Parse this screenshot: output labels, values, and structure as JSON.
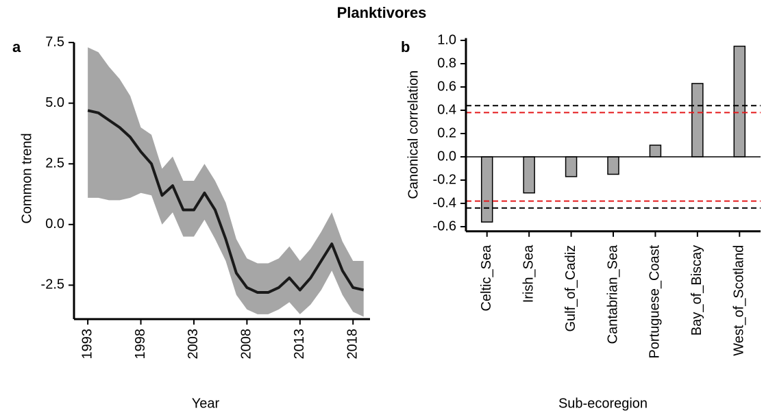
{
  "title": "Planktivores",
  "chart_data": [
    {
      "type": "line",
      "panel_label": "a",
      "x": [
        1993,
        1994,
        1995,
        1996,
        1997,
        1998,
        1999,
        2000,
        2001,
        2002,
        2003,
        2004,
        2005,
        2006,
        2007,
        2008,
        2009,
        2010,
        2011,
        2012,
        2013,
        2014,
        2015,
        2016,
        2017,
        2018,
        2019
      ],
      "series": [
        {
          "color": "#1a1a1a",
          "values": [
            4.7,
            4.6,
            4.3,
            4.0,
            3.6,
            3.0,
            2.5,
            1.2,
            1.6,
            0.6,
            0.6,
            1.3,
            0.6,
            -0.6,
            -2.0,
            -2.6,
            -2.8,
            -2.8,
            -2.6,
            -2.2,
            -2.7,
            -2.2,
            -1.5,
            -0.8,
            -1.9,
            -2.6,
            -2.7
          ]
        }
      ],
      "band": {
        "color": "#a6a6a6",
        "upper": [
          7.3,
          7.1,
          6.5,
          6.0,
          5.3,
          4.0,
          3.7,
          2.3,
          2.8,
          1.8,
          1.8,
          2.5,
          1.8,
          0.9,
          -0.6,
          -1.4,
          -1.6,
          -1.6,
          -1.4,
          -0.9,
          -1.5,
          -1.0,
          -0.3,
          0.5,
          -0.7,
          -1.5,
          -1.5
        ],
        "lower": [
          1.1,
          1.1,
          1.0,
          1.0,
          1.1,
          1.3,
          1.2,
          0.0,
          0.5,
          -0.5,
          -0.5,
          0.2,
          -0.6,
          -1.5,
          -2.9,
          -3.5,
          -3.7,
          -3.7,
          -3.5,
          -3.2,
          -3.7,
          -3.3,
          -2.7,
          -1.9,
          -2.9,
          -3.6,
          -3.8
        ]
      },
      "xlim": [
        1991.7,
        2019.6
      ],
      "xticks": [
        1993,
        1998,
        2003,
        2008,
        2013,
        2018
      ],
      "ylim": [
        -3.9,
        7.7
      ],
      "yticks": [
        7.5,
        {
          "value": 5,
          "label": "5.0"
        },
        2.5,
        {
          "value": 0,
          "label": "0.0"
        },
        -2.5
      ],
      "xlabel": "Year",
      "ylabel": "Common trend"
    },
    {
      "type": "bar",
      "panel_label": "b",
      "categories": [
        "Celtic_Sea",
        "Irish_Sea",
        "Gulf_of_Cadiz",
        "Cantabrian_Sea",
        "Portuguese_Coast",
        "Bay_of_Biscay",
        "West_of_Scotland"
      ],
      "values": [
        -0.56,
        -0.31,
        -0.17,
        -0.15,
        0.1,
        0.63,
        0.95
      ],
      "color": "#a6a6a6",
      "ylim": [
        -0.64,
        1.02
      ],
      "yticks": [
        {
          "value": 1,
          "label": "1.0"
        },
        0.8,
        0.6,
        0.4,
        0.2,
        {
          "value": 0,
          "label": "0.0"
        },
        -0.2,
        -0.4,
        -0.6
      ],
      "reference_lines": [
        {
          "value": 0.44,
          "color": "#000000"
        },
        {
          "value": 0.38,
          "color": "#e41a1c"
        },
        {
          "value": -0.38,
          "color": "#e41a1c"
        },
        {
          "value": -0.44,
          "color": "#000000"
        }
      ],
      "zero_line": true,
      "xlabel": "Sub-ecoregion",
      "ylabel": "Canonical correlation"
    }
  ]
}
